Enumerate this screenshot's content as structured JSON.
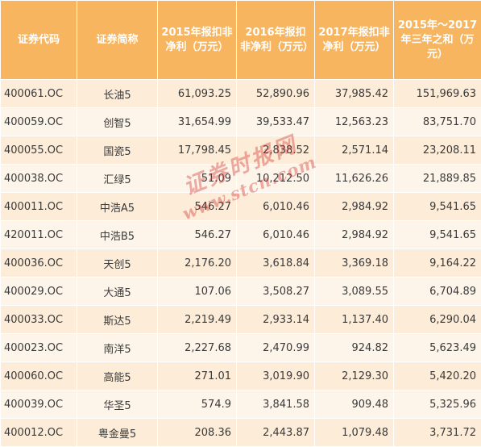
{
  "headers": [
    "证券代码",
    "证券简称",
    "2015年报扣非净利（万元）",
    "2016年报扣非净利（万元）",
    "2017年报扣非净利（万元）",
    "2015年～2017年三年之和（万元）"
  ],
  "rows": [
    [
      "400061.OC",
      "长油5",
      "61,093.25",
      "52,890.96",
      "37,985.42",
      "151,969.63"
    ],
    [
      "400059.OC",
      "创智5",
      "31,654.99",
      "39,533.47",
      "12,563.23",
      "83,751.70"
    ],
    [
      "400055.OC",
      "国瓷5",
      "17,798.45",
      "2,838.52",
      "2,571.14",
      "23,208.11"
    ],
    [
      "400038.OC",
      "汇绿5",
      "51.09",
      "10,212.50",
      "11,626.26",
      "21,889.85"
    ],
    [
      "400011.OC",
      "中浩A5",
      "546.27",
      "6,010.46",
      "2,984.92",
      "9,541.65"
    ],
    [
      "420011.OC",
      "中浩B5",
      "546.27",
      "6,010.46",
      "2,984.92",
      "9,541.65"
    ],
    [
      "400036.OC",
      "天创5",
      "2,176.20",
      "3,618.84",
      "3,369.18",
      "9,164.22"
    ],
    [
      "400029.OC",
      "大通5",
      "107.06",
      "3,508.27",
      "3,089.55",
      "6,704.89"
    ],
    [
      "400033.OC",
      "斯达5",
      "2,219.49",
      "2,933.14",
      "1,137.40",
      "6,290.04"
    ],
    [
      "400023.OC",
      "南洋5",
      "2,227.68",
      "2,470.99",
      "924.82",
      "5,623.49"
    ],
    [
      "400060.OC",
      "高能5",
      "271.01",
      "3,019.90",
      "2,129.30",
      "5,420.20"
    ],
    [
      "400039.OC",
      "华圣5",
      "574.9",
      "3,841.58",
      "909.48",
      "5,325.96"
    ],
    [
      "400012.OC",
      "粤金曼5",
      "208.36",
      "2,443.87",
      "1,079.48",
      "3,731.72"
    ]
  ],
  "watermark": {
    "cn": "证券时报网",
    "url": "www.stcn.com"
  },
  "colors": {
    "header_bg": "#f7b560",
    "header_text": "#ffffff",
    "row_odd": "#fdecd7",
    "row_even": "#fef5ea",
    "watermark": "#cd2d2d"
  }
}
